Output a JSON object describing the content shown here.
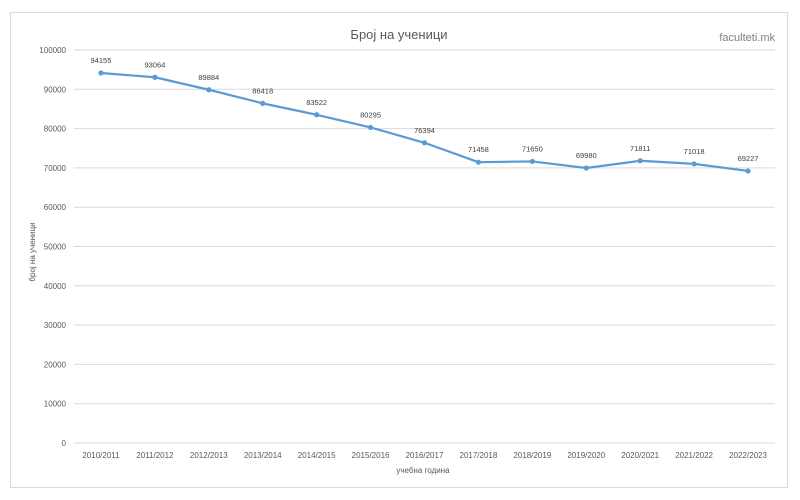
{
  "watermark": "faculteti.mk",
  "chart_data": {
    "type": "line",
    "title": "Број на ученици",
    "xlabel": "учебна година",
    "ylabel": "број на ученици",
    "categories": [
      "2010/2011",
      "2011/2012",
      "2012/2013",
      "2013/2014",
      "2014/2015",
      "2015/2016",
      "2016/2017",
      "2017/2018",
      "2018/2019",
      "2019/2020",
      "2020/2021",
      "2021/2022",
      "2022/2023"
    ],
    "series": [
      {
        "values": [
          94155,
          93064,
          89884,
          86418,
          83522,
          80295,
          76394,
          71458,
          71650,
          69980,
          71811,
          71018,
          69227
        ]
      }
    ],
    "yticks": [
      0,
      10000,
      20000,
      30000,
      40000,
      50000,
      60000,
      70000,
      80000,
      90000,
      100000
    ],
    "ylim": [
      0,
      100000
    ],
    "grid": true,
    "data_labels": true,
    "colors": {
      "line": "#5b9bd5",
      "grid": "#d9d9d9",
      "text": "#595959"
    }
  }
}
